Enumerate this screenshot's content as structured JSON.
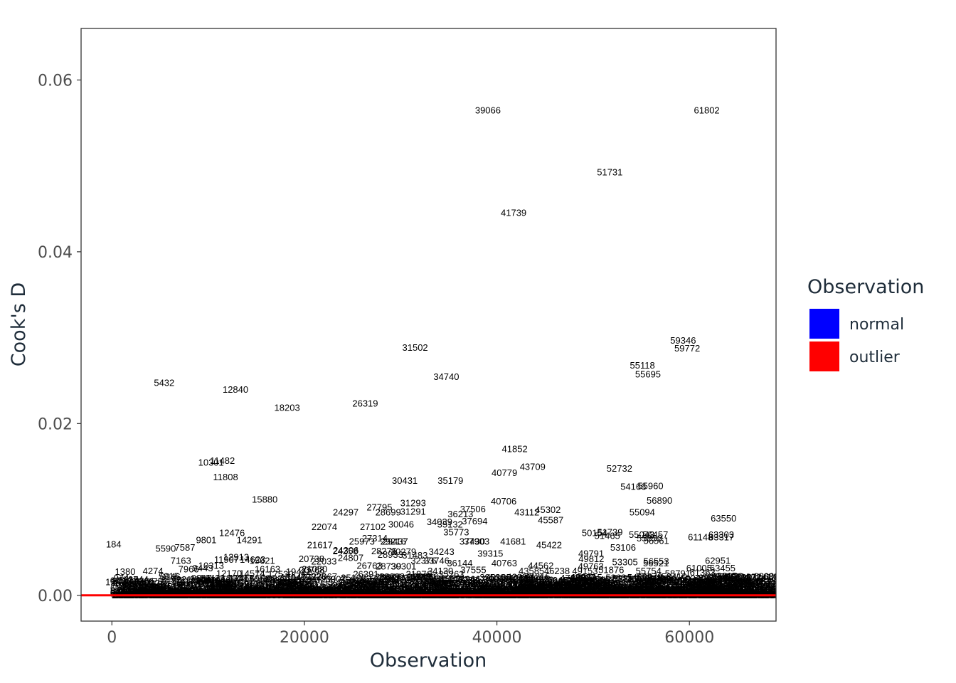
{
  "chart_data": {
    "type": "scatter",
    "title": "",
    "xlabel": "Observation",
    "ylabel": "Cook's D",
    "xlim": [
      -3200,
      69000
    ],
    "ylim": [
      -0.003,
      0.066
    ],
    "x_ticks": [
      0,
      20000,
      40000,
      60000
    ],
    "x_tick_labels": [
      "0",
      "20000",
      "40000",
      "60000"
    ],
    "y_ticks": [
      0,
      0.02,
      0.04,
      0.06
    ],
    "y_tick_labels": [
      "0.00",
      "0.02",
      "0.04",
      "0.06"
    ],
    "grid": false,
    "threshold_line": {
      "y": 0,
      "color": "#ff0000"
    },
    "legend": {
      "title": "Observation",
      "position": "right",
      "entries": [
        {
          "name": "normal",
          "color": "#0000ff"
        },
        {
          "name": "outlier",
          "color": "#ff0000"
        }
      ]
    },
    "labeled_points": [
      {
        "id": "39066",
        "x": 39066,
        "y": 0.0565
      },
      {
        "id": "61802",
        "x": 61802,
        "y": 0.0565
      },
      {
        "id": "51731",
        "x": 51731,
        "y": 0.0493
      },
      {
        "id": "41739",
        "x": 41739,
        "y": 0.0446
      },
      {
        "id": "59346",
        "x": 59346,
        "y": 0.0297
      },
      {
        "id": "59772",
        "x": 59772,
        "y": 0.0288
      },
      {
        "id": "31502",
        "x": 31502,
        "y": 0.0289
      },
      {
        "id": "55118",
        "x": 55118,
        "y": 0.0268
      },
      {
        "id": "55695",
        "x": 55695,
        "y": 0.0258
      },
      {
        "id": "34740",
        "x": 34740,
        "y": 0.0255
      },
      {
        "id": "5432",
        "x": 5432,
        "y": 0.0248
      },
      {
        "id": "12840",
        "x": 12840,
        "y": 0.024
      },
      {
        "id": "26319",
        "x": 26319,
        "y": 0.0224
      },
      {
        "id": "18203",
        "x": 18203,
        "y": 0.0219
      },
      {
        "id": "41852",
        "x": 41852,
        "y": 0.0171
      },
      {
        "id": "10301",
        "x": 10301,
        "y": 0.0155
      },
      {
        "id": "11482",
        "x": 11482,
        "y": 0.0157
      },
      {
        "id": "43709",
        "x": 43709,
        "y": 0.015
      },
      {
        "id": "52732",
        "x": 52732,
        "y": 0.0148
      },
      {
        "id": "40779",
        "x": 40779,
        "y": 0.0143
      },
      {
        "id": "11808",
        "x": 11808,
        "y": 0.0138
      },
      {
        "id": "30431",
        "x": 30431,
        "y": 0.0134
      },
      {
        "id": "35179",
        "x": 35179,
        "y": 0.0134
      },
      {
        "id": "54166",
        "x": 54166,
        "y": 0.0127
      },
      {
        "id": "55960",
        "x": 55960,
        "y": 0.0128
      },
      {
        "id": "15880",
        "x": 15880,
        "y": 0.0112
      },
      {
        "id": "56890",
        "x": 56890,
        "y": 0.0111
      },
      {
        "id": "40706",
        "x": 40706,
        "y": 0.011
      },
      {
        "id": "31293",
        "x": 31293,
        "y": 0.0108
      },
      {
        "id": "27795",
        "x": 27795,
        "y": 0.0103
      },
      {
        "id": "37506",
        "x": 37506,
        "y": 0.0101
      },
      {
        "id": "45302",
        "x": 45302,
        "y": 0.01
      },
      {
        "id": "24297",
        "x": 24297,
        "y": 0.0097
      },
      {
        "id": "28699",
        "x": 28699,
        "y": 0.0097
      },
      {
        "id": "31291",
        "x": 31291,
        "y": 0.0098
      },
      {
        "id": "43112",
        "x": 43112,
        "y": 0.0097
      },
      {
        "id": "55094",
        "x": 55094,
        "y": 0.0097
      },
      {
        "id": "36213",
        "x": 36213,
        "y": 0.0095
      },
      {
        "id": "63550",
        "x": 63550,
        "y": 0.009
      },
      {
        "id": "45587",
        "x": 45587,
        "y": 0.0088
      },
      {
        "id": "37694",
        "x": 37694,
        "y": 0.0087
      },
      {
        "id": "34039",
        "x": 34039,
        "y": 0.0086
      },
      {
        "id": "35132",
        "x": 35132,
        "y": 0.0083
      },
      {
        "id": "30046",
        "x": 30046,
        "y": 0.0083
      },
      {
        "id": "27102",
        "x": 27102,
        "y": 0.008
      },
      {
        "id": "22074",
        "x": 22074,
        "y": 0.008
      },
      {
        "id": "35773",
        "x": 35773,
        "y": 0.0074
      },
      {
        "id": "50154",
        "x": 50154,
        "y": 0.0073
      },
      {
        "id": "51739",
        "x": 51739,
        "y": 0.0074
      },
      {
        "id": "12476",
        "x": 12476,
        "y": 0.0073
      },
      {
        "id": "55043",
        "x": 55043,
        "y": 0.0071
      },
      {
        "id": "56457",
        "x": 56457,
        "y": 0.0071
      },
      {
        "id": "63303",
        "x": 63303,
        "y": 0.0071
      },
      {
        "id": "51465",
        "x": 51465,
        "y": 0.007
      },
      {
        "id": "61148",
        "x": 61148,
        "y": 0.0068
      },
      {
        "id": "63317",
        "x": 63317,
        "y": 0.0068
      },
      {
        "id": "27314",
        "x": 27314,
        "y": 0.0067
      },
      {
        "id": "55850",
        "x": 55850,
        "y": 0.0067
      },
      {
        "id": "56561",
        "x": 56561,
        "y": 0.0064
      },
      {
        "id": "9801",
        "x": 9801,
        "y": 0.0065
      },
      {
        "id": "14291",
        "x": 14291,
        "y": 0.0065
      },
      {
        "id": "25973",
        "x": 25973,
        "y": 0.0063
      },
      {
        "id": "29437",
        "x": 29437,
        "y": 0.0063
      },
      {
        "id": "29216",
        "x": 29216,
        "y": 0.0063
      },
      {
        "id": "37430",
        "x": 37430,
        "y": 0.0063
      },
      {
        "id": "37903",
        "x": 37903,
        "y": 0.0063
      },
      {
        "id": "41681",
        "x": 41681,
        "y": 0.0063
      },
      {
        "id": "184",
        "x": 184,
        "y": 0.006
      },
      {
        "id": "21617",
        "x": 21617,
        "y": 0.0059
      },
      {
        "id": "45422",
        "x": 45422,
        "y": 0.0059
      },
      {
        "id": "53106",
        "x": 53106,
        "y": 0.0056
      },
      {
        "id": "7587",
        "x": 7587,
        "y": 0.0056
      },
      {
        "id": "5590",
        "x": 5590,
        "y": 0.0055
      },
      {
        "id": "24306",
        "x": 24306,
        "y": 0.0053
      },
      {
        "id": "24258",
        "x": 24258,
        "y": 0.0052
      },
      {
        "id": "28276",
        "x": 28276,
        "y": 0.0052
      },
      {
        "id": "30279",
        "x": 30279,
        "y": 0.0051
      },
      {
        "id": "34243",
        "x": 34243,
        "y": 0.0051
      },
      {
        "id": "28933",
        "x": 28933,
        "y": 0.0048
      },
      {
        "id": "31483",
        "x": 31483,
        "y": 0.0047
      },
      {
        "id": "39315",
        "x": 39315,
        "y": 0.0049
      },
      {
        "id": "49791",
        "x": 49791,
        "y": 0.0049
      },
      {
        "id": "24807",
        "x": 24807,
        "y": 0.0044
      },
      {
        "id": "20738",
        "x": 20738,
        "y": 0.0043
      },
      {
        "id": "22033",
        "x": 22033,
        "y": 0.004
      },
      {
        "id": "11907",
        "x": 11907,
        "y": 0.0042
      },
      {
        "id": "12913",
        "x": 12913,
        "y": 0.0045
      },
      {
        "id": "14623",
        "x": 14623,
        "y": 0.0042
      },
      {
        "id": "15621",
        "x": 15621,
        "y": 0.0041
      },
      {
        "id": "7163",
        "x": 7163,
        "y": 0.0041
      },
      {
        "id": "32376",
        "x": 32376,
        "y": 0.0041
      },
      {
        "id": "33746",
        "x": 33746,
        "y": 0.0041
      },
      {
        "id": "49812",
        "x": 49812,
        "y": 0.0043
      },
      {
        "id": "53305",
        "x": 53305,
        "y": 0.0039
      },
      {
        "id": "56553",
        "x": 56553,
        "y": 0.004
      },
      {
        "id": "56521",
        "x": 56521,
        "y": 0.0038
      },
      {
        "id": "62951",
        "x": 62951,
        "y": 0.0041
      },
      {
        "id": "40763",
        "x": 40763,
        "y": 0.0038
      },
      {
        "id": "36144",
        "x": 36144,
        "y": 0.0038
      },
      {
        "id": "26763",
        "x": 26763,
        "y": 0.0035
      },
      {
        "id": "28739",
        "x": 28739,
        "y": 0.0034
      },
      {
        "id": "30301",
        "x": 30301,
        "y": 0.0034
      },
      {
        "id": "44562",
        "x": 44562,
        "y": 0.0035
      },
      {
        "id": "49763",
        "x": 49763,
        "y": 0.0034
      },
      {
        "id": "10313",
        "x": 10313,
        "y": 0.0035
      },
      {
        "id": "9443",
        "x": 9443,
        "y": 0.0032
      },
      {
        "id": "7966",
        "x": 7966,
        "y": 0.0031
      },
      {
        "id": "16163",
        "x": 16163,
        "y": 0.0031
      },
      {
        "id": "21050",
        "x": 21050,
        "y": 0.0031
      },
      {
        "id": "20768",
        "x": 20768,
        "y": 0.003
      },
      {
        "id": "61005",
        "x": 61005,
        "y": 0.0032
      },
      {
        "id": "63455",
        "x": 63455,
        "y": 0.0032
      },
      {
        "id": "1380",
        "x": 1380,
        "y": 0.0028
      },
      {
        "id": "4274",
        "x": 4274,
        "y": 0.0029
      },
      {
        "id": "19412",
        "x": 19412,
        "y": 0.0028
      },
      {
        "id": "34130",
        "x": 34130,
        "y": 0.0029
      },
      {
        "id": "37555",
        "x": 37555,
        "y": 0.003
      },
      {
        "id": "43585",
        "x": 43585,
        "y": 0.0029
      },
      {
        "id": "46238",
        "x": 46238,
        "y": 0.0029
      },
      {
        "id": "49153",
        "x": 49153,
        "y": 0.0029
      },
      {
        "id": "51876",
        "x": 51876,
        "y": 0.003
      },
      {
        "id": "55754",
        "x": 55754,
        "y": 0.0029
      },
      {
        "id": "58791",
        "x": 58791,
        "y": 0.0026
      },
      {
        "id": "61363",
        "x": 61363,
        "y": 0.0027
      },
      {
        "id": "12170",
        "x": 12170,
        "y": 0.0026
      },
      {
        "id": "14574",
        "x": 14574,
        "y": 0.0026
      },
      {
        "id": "17530",
        "x": 17530,
        "y": 0.0025
      },
      {
        "id": "6046",
        "x": 6046,
        "y": 0.0022
      },
      {
        "id": "26391",
        "x": 26391,
        "y": 0.0025
      },
      {
        "id": "31876",
        "x": 31876,
        "y": 0.0025
      },
      {
        "id": "35263",
        "x": 35263,
        "y": 0.0025
      },
      {
        "id": "63617",
        "x": 63617,
        "y": 0.0023
      },
      {
        "id": "64924",
        "x": 64924,
        "y": 0.0022
      },
      {
        "id": "124",
        "x": 124,
        "y": 0.0016
      },
      {
        "id": "3401",
        "x": 3401,
        "y": 0.0017
      },
      {
        "id": "9780",
        "x": 9780,
        "y": 0.0018
      },
      {
        "id": "17443",
        "x": 17443,
        "y": 0.0016
      },
      {
        "id": "57998",
        "x": 57998,
        "y": 0.0018
      },
      {
        "id": "61698",
        "x": 61698,
        "y": 0.0016
      },
      {
        "id": "66213",
        "x": 66213,
        "y": 0.0014
      }
    ]
  }
}
